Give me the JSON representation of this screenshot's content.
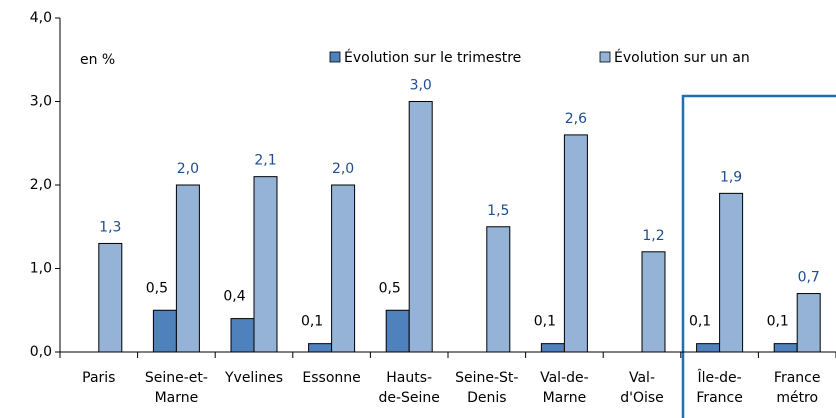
{
  "chart_data": {
    "type": "bar",
    "annotation": "en %",
    "categories": [
      [
        "Paris"
      ],
      [
        "Seine-et-",
        "Marne"
      ],
      [
        "Yvelines"
      ],
      [
        "Essonne"
      ],
      [
        "Hauts-",
        "de-Seine"
      ],
      [
        "Seine-St-",
        "Denis"
      ],
      [
        "Val-de-",
        "Marne"
      ],
      [
        "Val-",
        "d'Oise"
      ],
      [
        "Île-de-",
        "France"
      ],
      [
        "France",
        "métro"
      ]
    ],
    "series": [
      {
        "name": "Évolution sur le trimestre",
        "color": "#4f81bd",
        "label_color": "#000000",
        "values": [
          null,
          0.5,
          0.4,
          0.1,
          0.5,
          null,
          0.1,
          null,
          0.1,
          0.1
        ],
        "value_labels": [
          null,
          "0,5",
          "0,4",
          "0,1",
          "0,5",
          null,
          "0,1",
          null,
          "0,1",
          "0,1"
        ]
      },
      {
        "name": "Évolution sur un an",
        "color": "#95b3d7",
        "label_color": "#1f4e8c",
        "values": [
          1.3,
          2.0,
          2.1,
          2.0,
          3.0,
          1.5,
          2.6,
          1.2,
          1.9,
          0.7
        ],
        "value_labels": [
          "1,3",
          "2,0",
          "2,1",
          "2,0",
          "3,0",
          "1,5",
          "2,6",
          "1,2",
          "1,9",
          "0,7"
        ]
      }
    ],
    "ylim": [
      0,
      4
    ],
    "yticks": [
      {
        "value": 0,
        "label": "0,0"
      },
      {
        "value": 1,
        "label": "1,0"
      },
      {
        "value": 2,
        "label": "2,0"
      },
      {
        "value": 3,
        "label": "3,0"
      },
      {
        "value": 4,
        "label": "4,0"
      }
    ],
    "grid": false
  }
}
